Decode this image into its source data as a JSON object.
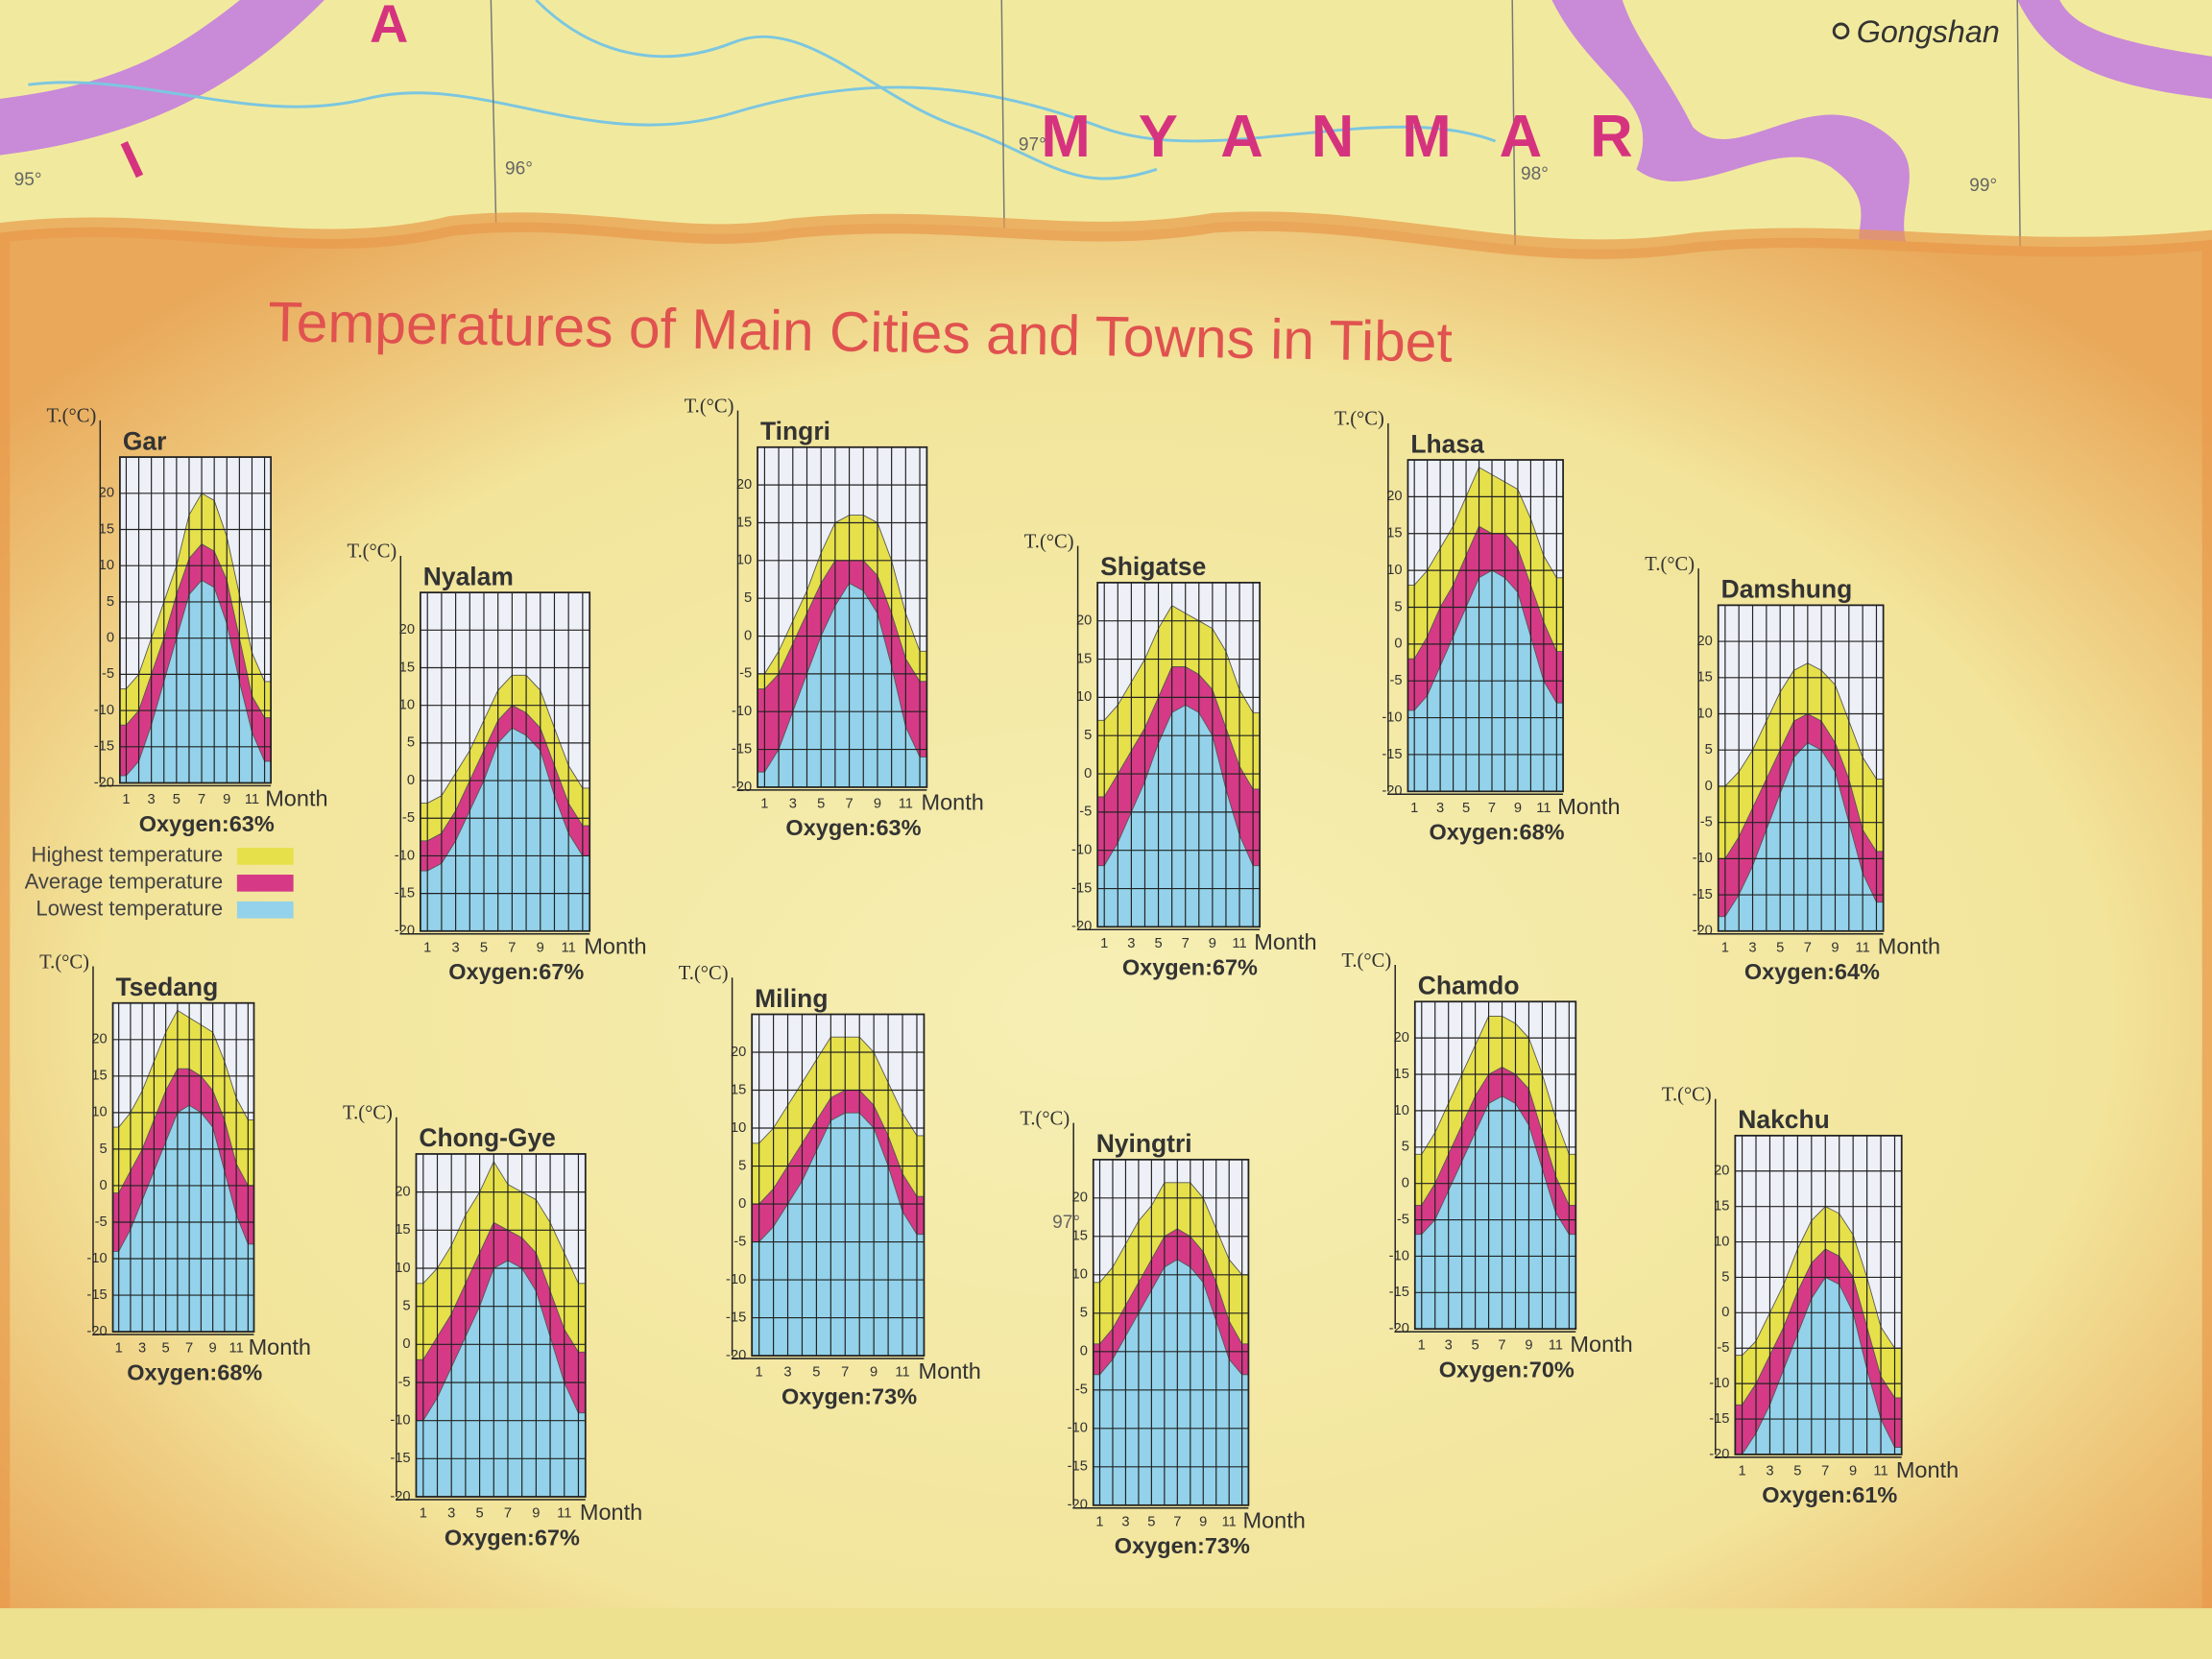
{
  "map": {
    "country": "MYANMAR",
    "town": "Gongshan",
    "fragments": [
      "A",
      "I"
    ],
    "longitudes": [
      "95°",
      "96°",
      "97°",
      "98°",
      "99°"
    ],
    "inset_longitude": "97°"
  },
  "title": "Temperatures of Main Cities and Towns in Tibet",
  "legend": [
    {
      "name": "Highest temperature",
      "color": "#e6e04a"
    },
    {
      "name": "Average temperature",
      "color": "#d63a86"
    },
    {
      "name": "Lowest temperature",
      "color": "#93d2ea"
    }
  ],
  "chart_data": [
    {
      "type": "area",
      "title": "Gar",
      "y_label": "T.(°C)",
      "x_label": "Month",
      "annotation": "Oxygen:63%",
      "x": [
        1,
        2,
        3,
        4,
        5,
        6,
        7,
        8,
        9,
        10,
        11,
        12
      ],
      "xlim": [
        0.5,
        12.5
      ],
      "xticks": [
        1,
        3,
        5,
        7,
        9,
        11
      ],
      "ylim": [
        -20,
        25
      ],
      "yticks": [
        -20,
        -15,
        -10,
        -5,
        0,
        5,
        10,
        15,
        20
      ],
      "series": [
        {
          "values": [
            -7,
            -5,
            0,
            5,
            10,
            17,
            20,
            19,
            14,
            6,
            -2,
            -6
          ]
        },
        {
          "values": [
            -12,
            -10,
            -5,
            0,
            6,
            11,
            13,
            12,
            8,
            0,
            -8,
            -11
          ]
        },
        {
          "values": [
            -19,
            -17,
            -12,
            -6,
            0,
            6,
            8,
            7,
            2,
            -6,
            -13,
            -17
          ]
        }
      ]
    },
    {
      "type": "area",
      "title": "Nyalam",
      "y_label": "T.(°C)",
      "x_label": "Month",
      "annotation": "Oxygen:67%",
      "x": [
        1,
        2,
        3,
        4,
        5,
        6,
        7,
        8,
        9,
        10,
        11,
        12
      ],
      "xlim": [
        0.5,
        12.5
      ],
      "xticks": [
        1,
        3,
        5,
        7,
        9,
        11
      ],
      "ylim": [
        -20,
        25
      ],
      "yticks": [
        -20,
        -15,
        -10,
        -5,
        0,
        5,
        10,
        15,
        20
      ],
      "series": [
        {
          "values": [
            -3,
            -2,
            1,
            4,
            8,
            12,
            14,
            14,
            12,
            7,
            2,
            -1
          ]
        },
        {
          "values": [
            -8,
            -7,
            -4,
            0,
            4,
            8,
            10,
            9,
            7,
            2,
            -3,
            -6
          ]
        },
        {
          "values": [
            -12,
            -11,
            -8,
            -4,
            0,
            5,
            7,
            6,
            4,
            -2,
            -7,
            -10
          ]
        }
      ]
    },
    {
      "type": "area",
      "title": "Tingri",
      "y_label": "T.(°C)",
      "x_label": "Month",
      "annotation": "Oxygen:63%",
      "x": [
        1,
        2,
        3,
        4,
        5,
        6,
        7,
        8,
        9,
        10,
        11,
        12
      ],
      "xlim": [
        0.5,
        12.5
      ],
      "xticks": [
        1,
        3,
        5,
        7,
        9,
        11
      ],
      "ylim": [
        -20,
        25
      ],
      "yticks": [
        -20,
        -15,
        -10,
        -5,
        0,
        5,
        10,
        15,
        20
      ],
      "series": [
        {
          "values": [
            -5,
            -2,
            2,
            6,
            11,
            15,
            16,
            16,
            15,
            10,
            3,
            -2
          ]
        },
        {
          "values": [
            -7,
            -5,
            -1,
            3,
            7,
            10,
            10,
            10,
            8,
            3,
            -3,
            -6
          ]
        },
        {
          "values": [
            -18,
            -15,
            -10,
            -5,
            0,
            4,
            7,
            6,
            3,
            -4,
            -12,
            -16
          ]
        }
      ]
    },
    {
      "type": "area",
      "title": "Shigatse",
      "y_label": "T.(°C)",
      "x_label": "Month",
      "annotation": "Oxygen:67%",
      "x": [
        1,
        2,
        3,
        4,
        5,
        6,
        7,
        8,
        9,
        10,
        11,
        12
      ],
      "xlim": [
        0.5,
        12.5
      ],
      "xticks": [
        1,
        3,
        5,
        7,
        9,
        11
      ],
      "ylim": [
        -20,
        25
      ],
      "yticks": [
        -20,
        -15,
        -10,
        -5,
        0,
        5,
        10,
        15,
        20
      ],
      "series": [
        {
          "values": [
            7,
            9,
            12,
            15,
            19,
            22,
            21,
            20,
            19,
            16,
            11,
            8
          ]
        },
        {
          "values": [
            -3,
            0,
            3,
            6,
            10,
            14,
            14,
            13,
            11,
            6,
            1,
            -2
          ]
        },
        {
          "values": [
            -12,
            -9,
            -5,
            -1,
            4,
            8,
            9,
            8,
            5,
            -2,
            -8,
            -12
          ]
        }
      ]
    },
    {
      "type": "area",
      "title": "Lhasa",
      "y_label": "T.(°C)",
      "x_label": "Month",
      "annotation": "Oxygen:68%",
      "x": [
        1,
        2,
        3,
        4,
        5,
        6,
        7,
        8,
        9,
        10,
        11,
        12
      ],
      "xlim": [
        0.5,
        12.5
      ],
      "xticks": [
        1,
        3,
        5,
        7,
        9,
        11
      ],
      "ylim": [
        -20,
        25
      ],
      "yticks": [
        -20,
        -15,
        -10,
        -5,
        0,
        5,
        10,
        15,
        20
      ],
      "series": [
        {
          "values": [
            8,
            10,
            13,
            16,
            20,
            24,
            23,
            22,
            21,
            17,
            12,
            9
          ]
        },
        {
          "values": [
            -2,
            1,
            5,
            8,
            12,
            16,
            15,
            15,
            13,
            8,
            3,
            -1
          ]
        },
        {
          "values": [
            -9,
            -7,
            -3,
            1,
            5,
            9,
            10,
            9,
            7,
            1,
            -5,
            -8
          ]
        }
      ]
    },
    {
      "type": "area",
      "title": "Damshung",
      "y_label": "T.(°C)",
      "x_label": "Month",
      "annotation": "Oxygen:64%",
      "x": [
        1,
        2,
        3,
        4,
        5,
        6,
        7,
        8,
        9,
        10,
        11,
        12
      ],
      "xlim": [
        0.5,
        12.5
      ],
      "xticks": [
        1,
        3,
        5,
        7,
        9,
        11
      ],
      "ylim": [
        -20,
        25
      ],
      "yticks": [
        -20,
        -15,
        -10,
        -5,
        0,
        5,
        10,
        15,
        20
      ],
      "series": [
        {
          "values": [
            0,
            2,
            5,
            9,
            13,
            16,
            17,
            16,
            14,
            9,
            4,
            1
          ]
        },
        {
          "values": [
            -10,
            -7,
            -3,
            1,
            5,
            9,
            10,
            9,
            6,
            1,
            -6,
            -9
          ]
        },
        {
          "values": [
            -18,
            -15,
            -11,
            -6,
            -1,
            4,
            6,
            5,
            2,
            -5,
            -12,
            -16
          ]
        }
      ]
    },
    {
      "type": "area",
      "title": "Tsedang",
      "y_label": "T.(°C)",
      "x_label": "Month",
      "annotation": "Oxygen:68%",
      "x": [
        1,
        2,
        3,
        4,
        5,
        6,
        7,
        8,
        9,
        10,
        11,
        12
      ],
      "xlim": [
        0.5,
        12.5
      ],
      "xticks": [
        1,
        3,
        5,
        7,
        9,
        11
      ],
      "ylim": [
        -20,
        25
      ],
      "yticks": [
        -20,
        -15,
        -10,
        -5,
        0,
        5,
        10,
        15,
        20
      ],
      "series": [
        {
          "values": [
            8,
            10,
            13,
            17,
            21,
            24,
            23,
            22,
            21,
            17,
            12,
            9
          ]
        },
        {
          "values": [
            -1,
            2,
            5,
            9,
            13,
            16,
            16,
            15,
            13,
            9,
            3,
            0
          ]
        },
        {
          "values": [
            -9,
            -6,
            -2,
            2,
            6,
            10,
            11,
            10,
            8,
            2,
            -4,
            -8
          ]
        }
      ]
    },
    {
      "type": "area",
      "title": "Chong-Gye",
      "y_label": "T.(°C)",
      "x_label": "Month",
      "annotation": "Oxygen:67%",
      "x": [
        1,
        2,
        3,
        4,
        5,
        6,
        7,
        8,
        9,
        10,
        11,
        12
      ],
      "xlim": [
        0.5,
        12.5
      ],
      "xticks": [
        1,
        3,
        5,
        7,
        9,
        11
      ],
      "ylim": [
        -20,
        25
      ],
      "yticks": [
        -20,
        -15,
        -10,
        -5,
        0,
        5,
        10,
        15,
        20
      ],
      "series": [
        {
          "values": [
            8,
            10,
            13,
            17,
            20,
            24,
            21,
            20,
            19,
            16,
            12,
            8
          ]
        },
        {
          "values": [
            -2,
            1,
            4,
            8,
            12,
            16,
            15,
            14,
            12,
            7,
            2,
            -1
          ]
        },
        {
          "values": [
            -10,
            -7,
            -3,
            1,
            5,
            10,
            11,
            10,
            7,
            1,
            -5,
            -9
          ]
        }
      ]
    },
    {
      "type": "area",
      "title": "Miling",
      "y_label": "T.(°C)",
      "x_label": "Month",
      "annotation": "Oxygen:73%",
      "x": [
        1,
        2,
        3,
        4,
        5,
        6,
        7,
        8,
        9,
        10,
        11,
        12
      ],
      "xlim": [
        0.5,
        12.5
      ],
      "xticks": [
        1,
        3,
        5,
        7,
        9,
        11
      ],
      "ylim": [
        -20,
        25
      ],
      "yticks": [
        -20,
        -15,
        -10,
        -5,
        0,
        5,
        10,
        15,
        20
      ],
      "series": [
        {
          "values": [
            8,
            10,
            13,
            16,
            19,
            22,
            22,
            22,
            20,
            16,
            12,
            9
          ]
        },
        {
          "values": [
            0,
            2,
            5,
            8,
            11,
            14,
            15,
            15,
            13,
            9,
            4,
            1
          ]
        },
        {
          "values": [
            -5,
            -3,
            0,
            3,
            7,
            11,
            12,
            12,
            10,
            5,
            -1,
            -4
          ]
        }
      ]
    },
    {
      "type": "area",
      "title": "Nyingtri",
      "y_label": "T.(°C)",
      "x_label": "Month",
      "annotation": "Oxygen:73%",
      "x": [
        1,
        2,
        3,
        4,
        5,
        6,
        7,
        8,
        9,
        10,
        11,
        12
      ],
      "xlim": [
        0.5,
        12.5
      ],
      "xticks": [
        1,
        3,
        5,
        7,
        9,
        11
      ],
      "ylim": [
        -20,
        25
      ],
      "yticks": [
        -20,
        -15,
        -10,
        -5,
        0,
        5,
        10,
        15,
        20
      ],
      "series": [
        {
          "values": [
            9,
            11,
            14,
            17,
            19,
            22,
            22,
            22,
            20,
            16,
            12,
            10
          ]
        },
        {
          "values": [
            1,
            3,
            6,
            9,
            12,
            15,
            16,
            15,
            13,
            9,
            4,
            1
          ]
        },
        {
          "values": [
            -3,
            -1,
            2,
            5,
            8,
            11,
            12,
            11,
            9,
            4,
            -1,
            -3
          ]
        }
      ]
    },
    {
      "type": "area",
      "title": "Chamdo",
      "y_label": "T.(°C)",
      "x_label": "Month",
      "annotation": "Oxygen:70%",
      "x": [
        1,
        2,
        3,
        4,
        5,
        6,
        7,
        8,
        9,
        10,
        11,
        12
      ],
      "xlim": [
        0.5,
        12.5
      ],
      "xticks": [
        1,
        3,
        5,
        7,
        9,
        11
      ],
      "ylim": [
        -20,
        25
      ],
      "yticks": [
        -20,
        -15,
        -10,
        -5,
        0,
        5,
        10,
        15,
        20
      ],
      "series": [
        {
          "values": [
            4,
            7,
            11,
            15,
            19,
            23,
            23,
            22,
            20,
            15,
            9,
            4
          ]
        },
        {
          "values": [
            -3,
            0,
            4,
            8,
            12,
            15,
            16,
            15,
            13,
            7,
            1,
            -3
          ]
        },
        {
          "values": [
            -7,
            -5,
            -1,
            3,
            7,
            11,
            12,
            11,
            8,
            2,
            -4,
            -7
          ]
        }
      ]
    },
    {
      "type": "area",
      "title": "Nakchu",
      "y_label": "T.(°C)",
      "x_label": "Month",
      "annotation": "Oxygen:61%",
      "x": [
        1,
        2,
        3,
        4,
        5,
        6,
        7,
        8,
        9,
        10,
        11,
        12
      ],
      "xlim": [
        0.5,
        12.5
      ],
      "xticks": [
        1,
        3,
        5,
        7,
        9,
        11
      ],
      "ylim": [
        -20,
        25
      ],
      "yticks": [
        -20,
        -15,
        -10,
        -5,
        0,
        5,
        10,
        15,
        20
      ],
      "series": [
        {
          "values": [
            -6,
            -4,
            0,
            4,
            9,
            13,
            15,
            14,
            11,
            5,
            -2,
            -5
          ]
        },
        {
          "values": [
            -13,
            -10,
            -6,
            -2,
            3,
            7,
            9,
            8,
            5,
            -2,
            -9,
            -12
          ]
        },
        {
          "values": [
            -20,
            -17,
            -13,
            -8,
            -3,
            2,
            5,
            4,
            0,
            -8,
            -15,
            -19
          ]
        }
      ]
    }
  ]
}
